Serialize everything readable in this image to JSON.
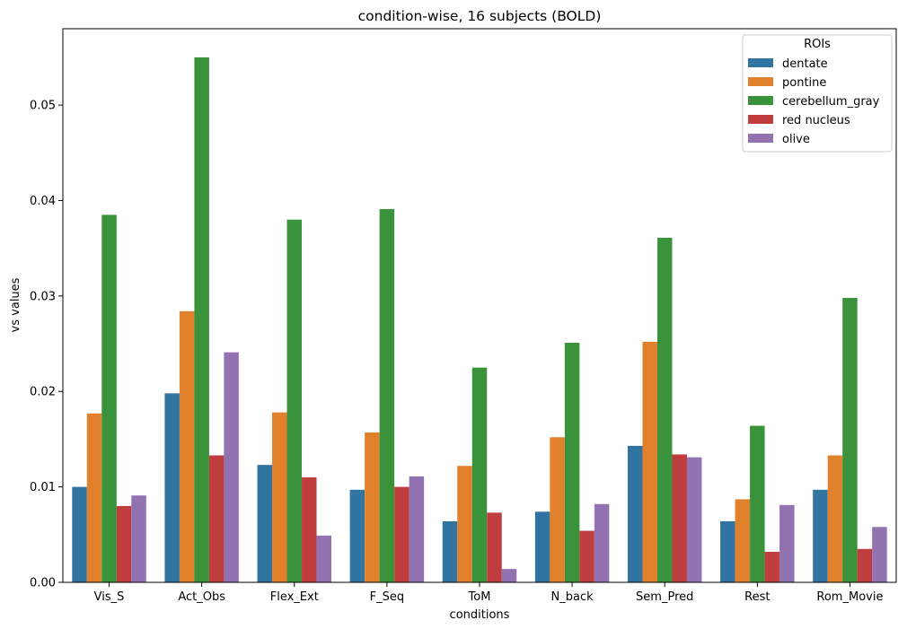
{
  "chart_data": {
    "type": "bar",
    "title": "condition-wise, 16 subjects (BOLD)",
    "xlabel": "conditions",
    "ylabel": "vs values",
    "categories": [
      "Vis_S",
      "Act_Obs",
      "Flex_Ext",
      "F_Seq",
      "ToM",
      "N_back",
      "Sem_Pred",
      "Rest",
      "Rom_Movie"
    ],
    "ylim": [
      0,
      0.058
    ],
    "yticks": [
      "0.00",
      "0.01",
      "0.02",
      "0.03",
      "0.04",
      "0.05"
    ],
    "legend": {
      "title": "ROIs",
      "position": "top-right"
    },
    "grid": false,
    "series": [
      {
        "name": "dentate",
        "color": "#3274a1",
        "values": [
          0.01,
          0.0198,
          0.0123,
          0.0097,
          0.0064,
          0.0074,
          0.0143,
          0.0064,
          0.0097
        ]
      },
      {
        "name": "pontine",
        "color": "#e1812c",
        "values": [
          0.0177,
          0.0284,
          0.0178,
          0.0157,
          0.0122,
          0.0152,
          0.0252,
          0.0087,
          0.0133
        ]
      },
      {
        "name": "cerebellum_gray",
        "color": "#3a923a",
        "values": [
          0.0385,
          0.055,
          0.038,
          0.0391,
          0.0225,
          0.0251,
          0.0361,
          0.0164,
          0.0298
        ]
      },
      {
        "name": "red nucleus",
        "color": "#c03d3e",
        "values": [
          0.008,
          0.0133,
          0.011,
          0.01,
          0.0073,
          0.0054,
          0.0134,
          0.0032,
          0.0035
        ]
      },
      {
        "name": "olive",
        "color": "#9372b2",
        "values": [
          0.0091,
          0.0241,
          0.0049,
          0.0111,
          0.0014,
          0.0082,
          0.0131,
          0.0081,
          0.0058
        ]
      }
    ]
  }
}
